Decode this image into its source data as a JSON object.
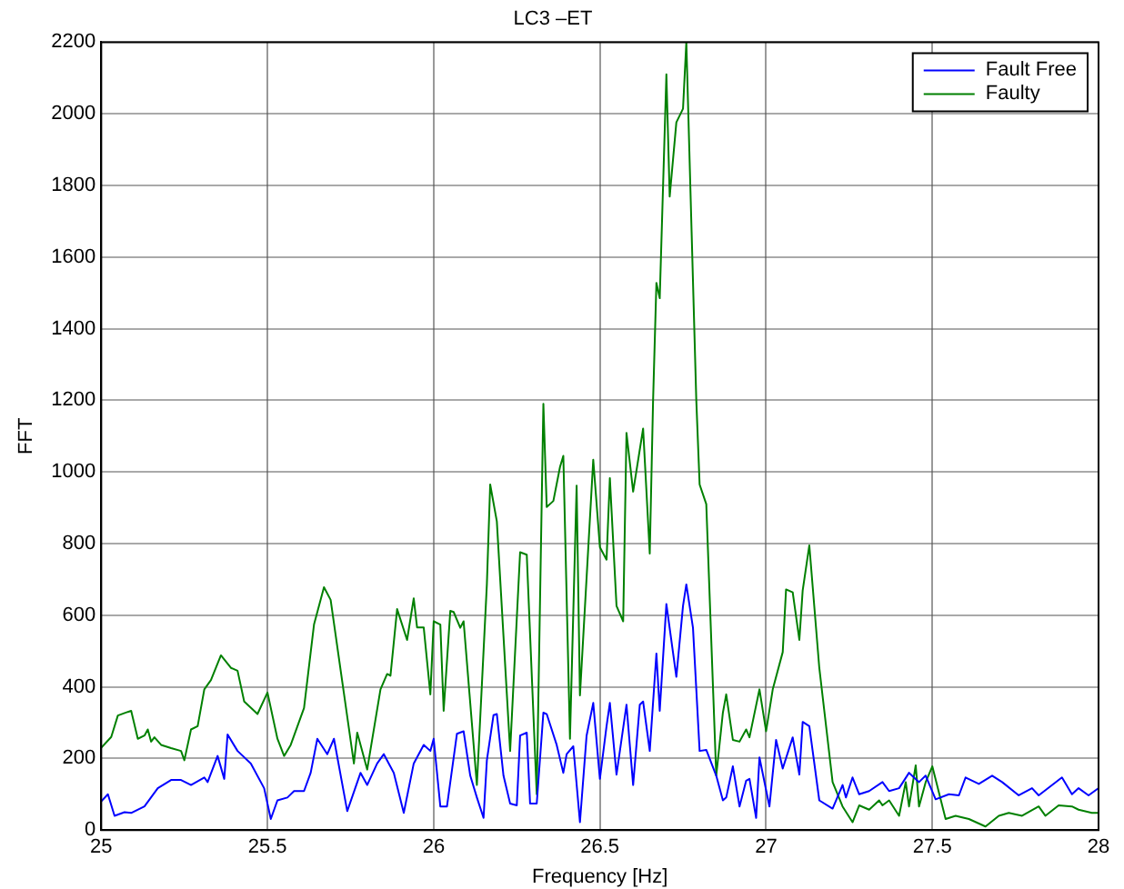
{
  "chart_data": {
    "type": "line",
    "title": "LC3 –ET",
    "xlabel": "Frequency [Hz]",
    "ylabel": "FFT",
    "xlim": [
      25,
      28
    ],
    "xticks": [
      25,
      25.5,
      26,
      26.5,
      27,
      27.5,
      28
    ],
    "ylim": [
      0,
      2200
    ],
    "yticks": [
      0,
      200,
      400,
      600,
      800,
      1000,
      1200,
      1400,
      1600,
      1800,
      2000,
      2200
    ],
    "grid": true,
    "legend": "top right",
    "marker": "none",
    "line_style": "solid",
    "series": [
      {
        "name": "Fault Free",
        "color": "#0000ff",
        "x": [
          25,
          25.02,
          25.04,
          25.07,
          25.09,
          25.13,
          25.17,
          25.21,
          25.24,
          25.27,
          25.31,
          25.32,
          25.35,
          25.37,
          25.38,
          25.41,
          25.45,
          25.49,
          25.51,
          25.53,
          25.56,
          25.58,
          25.61,
          25.63,
          25.65,
          25.68,
          25.7,
          25.74,
          25.78,
          25.8,
          25.83,
          25.85,
          25.88,
          25.91,
          25.94,
          25.97,
          25.99,
          26.0,
          26.02,
          26.04,
          26.07,
          26.09,
          26.11,
          26.13,
          26.15,
          26.16,
          26.18,
          26.19,
          26.21,
          26.23,
          26.25,
          26.26,
          26.28,
          26.29,
          26.31,
          26.33,
          26.34,
          26.37,
          26.39,
          26.4,
          26.42,
          26.44,
          26.46,
          26.48,
          26.5,
          26.52,
          26.53,
          26.55,
          26.58,
          26.6,
          26.62,
          26.63,
          26.65,
          26.67,
          26.68,
          26.7,
          26.73,
          26.75,
          26.76,
          26.78,
          26.8,
          26.82,
          26.85,
          26.87,
          26.88,
          26.9,
          26.92,
          26.94,
          26.95,
          26.97,
          26.98,
          27.01,
          27.03,
          27.05,
          27.08,
          27.1,
          27.11,
          27.13,
          27.16,
          27.2,
          27.23,
          27.24,
          27.26,
          27.28,
          27.31,
          27.35,
          27.37,
          27.4,
          27.43,
          27.46,
          27.48,
          27.51,
          27.55,
          27.58,
          27.6,
          27.64,
          27.68,
          27.71,
          27.76,
          27.8,
          27.82,
          27.89,
          27.92,
          27.94,
          27.97,
          28
        ],
        "values": [
          80,
          100,
          40,
          50,
          48,
          66,
          117,
          140,
          140,
          126,
          147,
          134,
          207,
          143,
          267,
          221,
          186,
          117,
          31,
          83,
          91,
          109,
          109,
          160,
          255,
          212,
          255,
          53,
          160,
          126,
          186,
          212,
          160,
          48,
          186,
          238,
          221,
          255,
          66,
          66,
          269,
          276,
          152,
          91,
          34,
          195,
          321,
          324,
          152,
          74,
          69,
          264,
          272,
          74,
          74,
          328,
          324,
          238,
          160,
          212,
          234,
          22,
          264,
          355,
          143,
          290,
          355,
          155,
          350,
          126,
          350,
          359,
          221,
          493,
          333,
          631,
          428,
          626,
          686,
          565,
          221,
          224,
          152,
          83,
          91,
          178,
          66,
          138,
          143,
          34,
          203,
          66,
          252,
          172,
          259,
          155,
          302,
          290,
          83,
          60,
          126,
          91,
          147,
          100,
          109,
          134,
          109,
          117,
          160,
          134,
          152,
          86,
          100,
          97,
          147,
          129,
          152,
          134,
          97,
          117,
          97,
          147,
          100,
          117,
          97,
          117
        ]
      },
      {
        "name": "Faulty",
        "color": "#008000",
        "x": [
          25,
          25.03,
          25.05,
          25.08,
          25.09,
          25.11,
          25.13,
          25.14,
          25.15,
          25.16,
          25.18,
          25.21,
          25.24,
          25.25,
          25.27,
          25.29,
          25.31,
          25.33,
          25.36,
          25.39,
          25.41,
          25.43,
          25.46,
          25.47,
          25.5,
          25.53,
          25.55,
          25.57,
          25.61,
          25.64,
          25.67,
          25.69,
          25.76,
          25.77,
          25.8,
          25.84,
          25.86,
          25.87,
          25.89,
          25.92,
          25.94,
          25.95,
          25.97,
          25.99,
          26.0,
          26.02,
          26.03,
          26.05,
          26.06,
          26.08,
          26.09,
          26.13,
          26.16,
          26.17,
          26.19,
          26.23,
          26.26,
          26.28,
          26.31,
          26.33,
          26.34,
          26.36,
          26.38,
          26.39,
          26.41,
          26.43,
          26.44,
          26.48,
          26.5,
          26.52,
          26.53,
          26.55,
          26.57,
          26.58,
          26.6,
          26.63,
          26.65,
          26.66,
          26.67,
          26.68,
          26.7,
          26.71,
          26.73,
          26.75,
          26.76,
          26.79,
          26.8,
          26.82,
          26.85,
          26.87,
          26.88,
          26.9,
          26.92,
          26.94,
          26.95,
          26.98,
          27.0,
          27.02,
          27.05,
          27.06,
          27.08,
          27.1,
          27.11,
          27.13,
          27.16,
          27.2,
          27.23,
          27.26,
          27.28,
          27.31,
          27.34,
          27.35,
          27.37,
          27.4,
          27.42,
          27.43,
          27.45,
          27.46,
          27.48,
          27.5,
          27.54,
          27.57,
          27.61,
          27.66,
          27.7,
          27.73,
          27.77,
          27.82,
          27.84,
          27.88,
          27.92,
          27.94,
          27.98,
          28
        ],
        "values": [
          230,
          260,
          320,
          330,
          333,
          255,
          264,
          281,
          247,
          259,
          238,
          229,
          221,
          195,
          281,
          290,
          393,
          419,
          488,
          453,
          445,
          359,
          333,
          324,
          384,
          255,
          207,
          238,
          341,
          574,
          678,
          643,
          186,
          272,
          169,
          393,
          436,
          431,
          617,
          531,
          647,
          566,
          566,
          379,
          583,
          574,
          333,
          612,
          609,
          565,
          583,
          126,
          686,
          965,
          862,
          221,
          776,
          769,
          100,
          1190,
          902,
          919,
          1014,
          1045,
          255,
          962,
          376,
          1034,
          790,
          755,
          983,
          626,
          583,
          1109,
          945,
          1121,
          772,
          1200,
          1528,
          1485,
          2110,
          1769,
          1976,
          2014,
          2200,
          1200,
          965,
          910,
          152,
          328,
          379,
          252,
          247,
          281,
          259,
          393,
          276,
          393,
          497,
          672,
          664,
          531,
          669,
          795,
          453,
          134,
          66,
          22,
          69,
          57,
          83,
          69,
          83,
          40,
          134,
          66,
          181,
          66,
          134,
          178,
          31,
          40,
          31,
          10,
          40,
          48,
          40,
          66,
          40,
          69,
          66,
          57,
          48,
          48
        ]
      }
    ]
  }
}
